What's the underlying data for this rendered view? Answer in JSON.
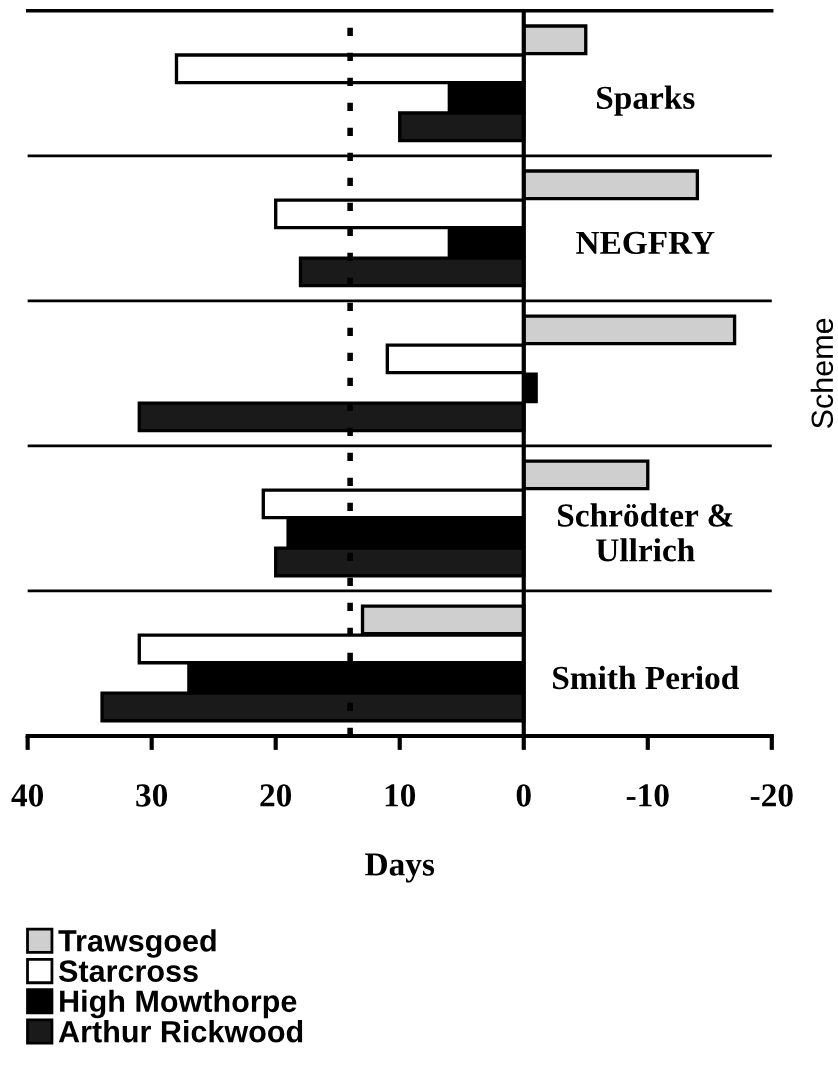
{
  "chart_data": {
    "type": "bar",
    "orientation": "horizontal",
    "xlabel": "Days",
    "ylabel": "Scheme",
    "categories": [
      "Sparks",
      "NEGFRY",
      null,
      "Schrödter &\nUllrich",
      "Smith Period"
    ],
    "series": [
      {
        "name": "Trawsgoed",
        "color": "#cfcfcf",
        "values": [
          -5,
          -14,
          -17,
          -10,
          13
        ]
      },
      {
        "name": "Starcross",
        "color": "#ffffff",
        "values": [
          28,
          20,
          11,
          21,
          31
        ]
      },
      {
        "name": "High Mowthorpe",
        "color": "#000000",
        "values": [
          6,
          6,
          -1,
          19,
          27
        ]
      },
      {
        "name": "Arthur Rickwood",
        "color": "#1a1a1a",
        "values": [
          10,
          18,
          31,
          20,
          34
        ]
      }
    ],
    "xlim": [
      40,
      -20
    ],
    "xticks": [
      40,
      30,
      20,
      10,
      0,
      -10,
      -20
    ],
    "ref_lines": [
      {
        "axis": "x",
        "value": 14,
        "line_style": "dotted"
      }
    ],
    "grid": "y",
    "legend": "bottom left"
  }
}
